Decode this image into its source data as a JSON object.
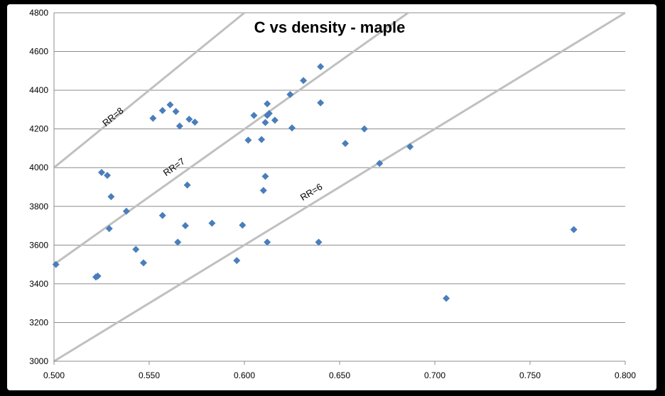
{
  "chart_data": {
    "type": "scatter",
    "title": "C vs density - maple",
    "xlabel": "",
    "ylabel": "",
    "xlim": [
      0.5,
      0.8
    ],
    "ylim": [
      3000,
      4800
    ],
    "x_ticks": [
      "0.500",
      "0.550",
      "0.600",
      "0.650",
      "0.700",
      "0.750",
      "0.800"
    ],
    "y_ticks": [
      "3000",
      "3200",
      "3400",
      "3600",
      "3800",
      "4000",
      "4200",
      "4400",
      "4600",
      "4800"
    ],
    "grid": "horizontal",
    "marker_color": "#4a7ebb",
    "reference_line_color": "#c0c0c0",
    "reference_lines": [
      {
        "label": "RR=8",
        "x": [
          0.5,
          0.6
        ],
        "y": [
          4000,
          4800
        ],
        "label_x": 0.532,
        "label_y": 4250
      },
      {
        "label": "RR=7",
        "x": [
          0.5,
          0.686
        ],
        "y": [
          3500,
          4800
        ],
        "label_x": 0.564,
        "label_y": 3990
      },
      {
        "label": "RR=6",
        "x": [
          0.5,
          0.8
        ],
        "y": [
          3000,
          4800
        ],
        "label_x": 0.636,
        "label_y": 3860
      }
    ],
    "series": [
      {
        "x": [
          0.501,
          0.522,
          0.523,
          0.525,
          0.528,
          0.529,
          0.53,
          0.538,
          0.543,
          0.547,
          0.552,
          0.557,
          0.557,
          0.561,
          0.564,
          0.565,
          0.566,
          0.569,
          0.57,
          0.571,
          0.574,
          0.583,
          0.596,
          0.599,
          0.602,
          0.605,
          0.609,
          0.61,
          0.611,
          0.611,
          0.612,
          0.612,
          0.612,
          0.613,
          0.616,
          0.624,
          0.625,
          0.631,
          0.639,
          0.64,
          0.64,
          0.653,
          0.663,
          0.671,
          0.687,
          0.706,
          0.773
        ],
        "y": [
          3500,
          3435,
          3440,
          3975,
          3960,
          3685,
          3850,
          3775,
          3578,
          3508,
          4255,
          4295,
          3753,
          4325,
          4290,
          3615,
          4215,
          3700,
          3910,
          4250,
          4235,
          3713,
          3520,
          3703,
          4142,
          4270,
          4145,
          3882,
          3955,
          4233,
          4270,
          4330,
          3615,
          4280,
          4245,
          4378,
          4205,
          4450,
          3615,
          4335,
          4522,
          4125,
          4200,
          4022,
          4108,
          3325,
          3680
        ]
      }
    ]
  }
}
